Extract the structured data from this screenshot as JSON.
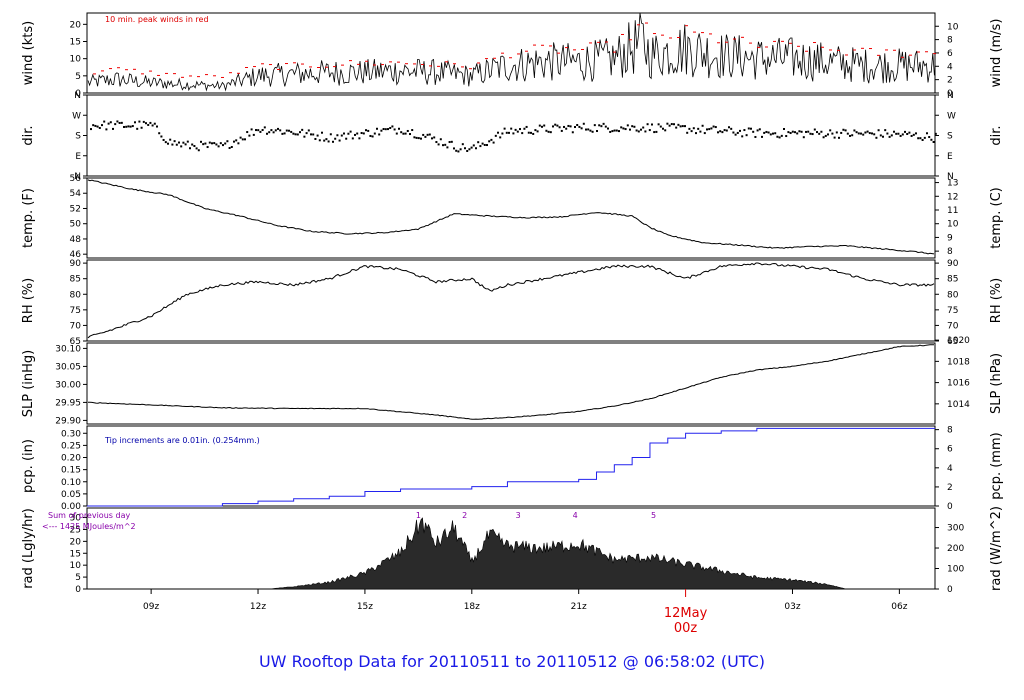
{
  "title": "UW Rooftop Data for 20110511  to  20110512 @ 06:58:02  (UTC)",
  "colors": {
    "peak": "#ee0000",
    "precip": "#2222ee",
    "annot_red": "#dd0000",
    "annot_blue": "#0000aa",
    "annot_purple": "#8800aa",
    "title": "#1a1ae6",
    "fill": "#2a2a2a"
  },
  "x_axis": {
    "ticks": [
      "09z",
      "12z",
      "15z",
      "18z",
      "21z",
      "03z",
      "06z"
    ],
    "tick_hours": [
      9,
      12,
      15,
      18,
      21,
      27,
      30
    ],
    "day_label": "12May",
    "day_sub": "00z",
    "day_hour": 24,
    "range_hours": [
      7.2,
      31.0
    ]
  },
  "chart_data": [
    {
      "type": "line",
      "ylabel": "wind (kts)",
      "ylabel_right": "wind (m/s)",
      "ylim": [
        0,
        23.3
      ],
      "yticks": [
        "0",
        "5",
        "10",
        "15",
        "20"
      ],
      "ytick_values": [
        0,
        5,
        10,
        15,
        20
      ],
      "yticks_right": [
        "0",
        "2",
        "4",
        "6",
        "8",
        "10"
      ],
      "ytick_right_values": [
        0,
        3.89,
        7.78,
        11.66,
        15.55,
        19.44
      ],
      "annotation": "10 min. peak winds in red",
      "series": [
        {
          "x": [
            7.2,
            8,
            9,
            10,
            11,
            12,
            13,
            14,
            15,
            16,
            17,
            18,
            19,
            20,
            21,
            22,
            22.8,
            23,
            24,
            25,
            26,
            27,
            28,
            29,
            30,
            31
          ],
          "y": [
            3,
            4,
            3,
            2.5,
            2,
            5,
            5.5,
            6,
            6,
            6.5,
            6,
            5,
            8,
            9,
            9,
            10,
            15,
            11,
            13,
            11,
            10,
            10,
            9,
            8,
            8,
            8
          ]
        },
        {
          "x": [
            7.2,
            8,
            9,
            10,
            11,
            12,
            13,
            14,
            15,
            16,
            17,
            18,
            19,
            20,
            21,
            22,
            22.8,
            23,
            24,
            25,
            26,
            27,
            28,
            29,
            30,
            31
          ],
          "y": [
            6,
            7,
            6,
            5,
            5,
            8,
            8,
            8.5,
            9,
            9,
            8.5,
            8,
            12,
            13,
            13,
            14,
            21,
            16,
            18,
            16,
            14,
            14,
            13,
            12,
            12,
            12
          ]
        }
      ]
    },
    {
      "type": "scatter",
      "ylabel": "dir.",
      "ylabel_right": "dir.",
      "ylim": [
        0,
        360
      ],
      "yticks": [
        "N",
        "E",
        "S",
        "W",
        "N"
      ],
      "ytick_values": [
        0,
        90,
        180,
        270,
        360
      ],
      "yticks_right": [
        "N",
        "E",
        "S",
        "W",
        "N"
      ],
      "ytick_right_values": [
        0,
        90,
        180,
        270,
        360
      ],
      "series": [
        {
          "x": [
            7.2,
            9,
            9.5,
            10,
            11,
            12,
            13,
            14,
            15,
            16,
            17,
            17.5,
            18,
            19,
            21,
            23,
            24,
            26,
            28,
            30,
            31
          ],
          "y": [
            225,
            225,
            150,
            135,
            130,
            210,
            195,
            170,
            190,
            210,
            160,
            130,
            120,
            200,
            215,
            215,
            210,
            190,
            190,
            185,
            170
          ]
        }
      ]
    },
    {
      "type": "line",
      "ylabel": "temp. (F)",
      "ylabel_right": "temp. (C)",
      "ylim": [
        45.5,
        56
      ],
      "yticks": [
        "46",
        "48",
        "50",
        "52",
        "54",
        "56"
      ],
      "ytick_values": [
        46,
        48,
        50,
        52,
        54,
        56
      ],
      "yticks_right": [
        "8",
        "9",
        "10",
        "11",
        "12",
        "13"
      ],
      "ytick_right_values": [
        46.4,
        48.2,
        50,
        51.8,
        53.6,
        55.4
      ],
      "series": [
        {
          "x": [
            7.2,
            8.5,
            9.5,
            10.5,
            11.5,
            12.5,
            13.5,
            14.5,
            15.5,
            16.5,
            17.5,
            18.5,
            19.5,
            20.5,
            21.5,
            22.5,
            23,
            23.5,
            24.5,
            25.5,
            26.5,
            27.5,
            28.5,
            29.5,
            30.5,
            31
          ],
          "y": [
            55.8,
            54.5,
            53.8,
            52,
            51,
            49.8,
            49,
            48.7,
            48.8,
            49.3,
            51.3,
            51,
            50.8,
            50.9,
            51.5,
            51,
            49.5,
            48.5,
            47.5,
            47.2,
            46.8,
            47,
            47.1,
            46.7,
            46.3,
            46
          ]
        }
      ]
    },
    {
      "type": "line",
      "ylabel": "RH (%)",
      "ylabel_right": "RH (%)",
      "ylim": [
        65,
        91
      ],
      "yticks": [
        "65",
        "70",
        "75",
        "80",
        "85",
        "90"
      ],
      "ytick_values": [
        65,
        70,
        75,
        80,
        85,
        90
      ],
      "yticks_right": [
        "65",
        "70",
        "75",
        "80",
        "85",
        "90"
      ],
      "ytick_right_values": [
        65,
        70,
        75,
        80,
        85,
        90
      ],
      "series": [
        {
          "x": [
            7.2,
            8,
            9,
            10,
            11,
            12,
            13,
            14,
            15,
            16,
            17,
            18,
            18.5,
            19,
            20,
            21,
            22,
            23,
            24,
            25,
            26,
            27,
            28,
            29,
            30,
            31
          ],
          "y": [
            66,
            69,
            73,
            80,
            83,
            84,
            83,
            85,
            89,
            88,
            84,
            85,
            81,
            83,
            85,
            87,
            89,
            89,
            85,
            89,
            90,
            89,
            88,
            85,
            83,
            83
          ]
        }
      ]
    },
    {
      "type": "line",
      "ylabel": "SLP (inHg)",
      "ylabel_right": "SLP (hPa)",
      "ylim": [
        29.89,
        30.115
      ],
      "yticks": [
        "29.90",
        "29.95",
        "30.00",
        "30.05",
        "30.10"
      ],
      "ytick_values": [
        29.9,
        29.95,
        30.0,
        30.05,
        30.1
      ],
      "yticks_right": [
        "1014",
        "1016",
        "1018",
        "1020"
      ],
      "ytick_right_values": [
        29.946,
        30.005,
        30.064,
        30.123
      ],
      "series": [
        {
          "x": [
            7.2,
            9,
            11,
            13,
            15,
            17,
            18,
            19,
            20,
            21,
            22,
            23,
            24,
            25,
            26,
            27,
            28,
            29,
            30,
            31
          ],
          "y": [
            29.95,
            29.943,
            29.935,
            29.933,
            29.933,
            29.915,
            29.903,
            29.908,
            29.915,
            29.925,
            29.94,
            29.96,
            29.99,
            30.02,
            30.04,
            30.05,
            30.065,
            30.085,
            30.105,
            30.11
          ]
        }
      ]
    },
    {
      "type": "line",
      "ylabel": "pcp. (in)",
      "ylabel_right": "pcp. (mm)",
      "ylim": [
        0,
        0.33
      ],
      "yticks": [
        "0.00",
        "0.05",
        "0.10",
        "0.15",
        "0.20",
        "0.25",
        "0.30"
      ],
      "ytick_values": [
        0,
        0.05,
        0.1,
        0.15,
        0.2,
        0.25,
        0.3
      ],
      "yticks_right": [
        "0",
        "2",
        "4",
        "6",
        "8"
      ],
      "ytick_right_values": [
        0,
        0.0787,
        0.1575,
        0.2362,
        0.315
      ],
      "annotation": "Tip increments are 0.01in. (0.254mm.)",
      "series": [
        {
          "x": [
            7.2,
            10.3,
            11,
            12,
            13,
            14,
            15,
            16,
            17,
            18,
            19,
            20,
            21,
            21.5,
            22,
            22.5,
            23,
            23.5,
            24,
            25,
            26,
            31
          ],
          "y": [
            0,
            0,
            0.01,
            0.02,
            0.03,
            0.04,
            0.06,
            0.07,
            0.07,
            0.08,
            0.1,
            0.1,
            0.11,
            0.14,
            0.17,
            0.2,
            0.26,
            0.28,
            0.3,
            0.31,
            0.32,
            0.32
          ]
        }
      ]
    },
    {
      "type": "area",
      "ylabel": "rad (Lgly/hr)",
      "ylabel_right": "rad (W/m^2)",
      "ylim": [
        0,
        34
      ],
      "yticks": [
        "0",
        "5",
        "10",
        "15",
        "20",
        "25",
        "30"
      ],
      "ytick_values": [
        0,
        5,
        10,
        15,
        20,
        25,
        30
      ],
      "yticks_right": [
        "0",
        "100",
        "200",
        "300"
      ],
      "ytick_right_values": [
        0,
        8.6,
        17.2,
        25.8
      ],
      "annotation": "Sum of previous day",
      "annotation2": "<--- 1425 MJoules/m^2",
      "markers": [
        "1",
        "2",
        "3",
        "4",
        "5"
      ],
      "marker_hours": [
        16.5,
        17.8,
        19.3,
        20.9,
        23.1
      ],
      "series": [
        {
          "x": [
            7.2,
            12.3,
            13,
            14,
            15,
            16,
            16.6,
            17,
            17.5,
            18,
            18.5,
            19,
            20,
            21,
            22,
            23,
            24,
            25,
            26,
            27,
            28,
            28.5,
            31
          ],
          "y": [
            0,
            0,
            1,
            3,
            7,
            16,
            30,
            20,
            27,
            12,
            24,
            19,
            18,
            20,
            13,
            14,
            11,
            8,
            5,
            4,
            2,
            0,
            0
          ]
        }
      ]
    }
  ]
}
